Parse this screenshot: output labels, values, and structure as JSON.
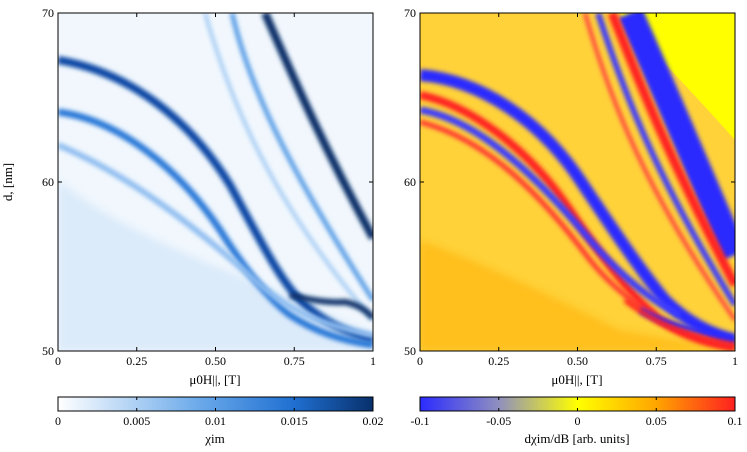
{
  "chart_data": [
    {
      "type": "heatmap",
      "xlabel": "μ0H||, [T]",
      "ylabel": "d, [nm]",
      "xlim": [
        0,
        1
      ],
      "ylim": [
        50,
        70
      ],
      "xticks": [
        "0",
        "0.25",
        "0.50",
        "0.75",
        "1"
      ],
      "yticks": [
        "50",
        "60",
        "70"
      ],
      "colorbar": {
        "label": "χim",
        "range": [
          0,
          0.02
        ],
        "ticks": [
          "0",
          "0.005",
          "0.01",
          "0.015",
          "0.02"
        ],
        "colors": [
          "#ffffff",
          "#1f6fd1",
          "#08306b"
        ]
      },
      "features": [
        {
          "d": [
            67,
            65.5,
            62,
            57,
            52.5
          ],
          "h": [
            0,
            0.2,
            0.4,
            0.6,
            0.75
          ],
          "value": 0.02
        },
        {
          "d": [
            64,
            62.5,
            60,
            55.5,
            51.5
          ],
          "h": [
            0,
            0.2,
            0.4,
            0.6,
            0.75
          ],
          "value": 0.016
        },
        {
          "d": [
            70,
            65,
            60,
            56.5
          ],
          "h": [
            0.64,
            0.78,
            0.92,
            1
          ],
          "value": 0.02
        },
        {
          "d": [
            53,
            52,
            51
          ],
          "h": [
            0.75,
            0.85,
            1
          ],
          "value": 0.02
        }
      ]
    },
    {
      "type": "heatmap",
      "xlabel": "μ0H||, [T]",
      "ylabel": "",
      "xlim": [
        0,
        1
      ],
      "ylim": [
        50,
        70
      ],
      "xticks": [
        "0",
        "0.25",
        "0.50",
        "0.75",
        "1"
      ],
      "yticks": [
        "50",
        "60",
        "70"
      ],
      "colorbar": {
        "label": "dχim/dB  [arb. units]",
        "range": [
          -0.1,
          0.1
        ],
        "ticks": [
          "-0.1",
          "-0.05",
          "0",
          "0.05",
          "0.1"
        ],
        "colors": [
          "#2b2bff",
          "#aaaaaa",
          "#ffff00",
          "#ff2020"
        ]
      },
      "features": [
        {
          "d": [
            67,
            65.5,
            62,
            57,
            52.5
          ],
          "h": [
            0,
            0.2,
            0.4,
            0.6,
            0.75
          ],
          "value": -0.1
        },
        {
          "d": [
            64,
            62.5,
            60,
            55.5,
            51.5
          ],
          "h": [
            0,
            0.2,
            0.4,
            0.6,
            0.75
          ],
          "value": 0.1
        },
        {
          "d": [
            70,
            65,
            60,
            56.5
          ],
          "h": [
            0.64,
            0.78,
            0.92,
            1
          ],
          "value": -0.1
        }
      ]
    }
  ]
}
